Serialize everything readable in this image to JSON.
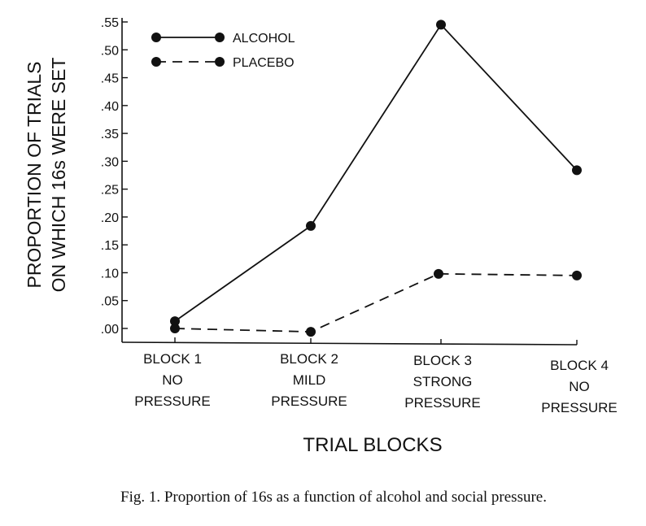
{
  "chart_data": {
    "type": "line",
    "title": "",
    "xlabel": "TRIAL BLOCKS",
    "ylabel": [
      "PROPORTION OF TRIALS",
      "ON WHICH 16s WERE SET"
    ],
    "categories": [
      {
        "lines": [
          "BLOCK   1",
          "NO",
          "PRESSURE"
        ]
      },
      {
        "lines": [
          "BLOCK   2",
          "MILD",
          "PRESSURE"
        ]
      },
      {
        "lines": [
          "BLOCK   3",
          "STRONG",
          "PRESSURE"
        ]
      },
      {
        "lines": [
          "BLOCK   4",
          "NO",
          "PRESSURE"
        ]
      }
    ],
    "yticks": [
      ".00",
      ".05",
      ".10",
      ".15",
      ".20",
      ".25",
      ".30",
      ".35",
      ".40",
      ".45",
      ".50",
      ".55"
    ],
    "ylim": [
      0,
      0.55
    ],
    "grid": false,
    "legend_position": "top-left",
    "series": [
      {
        "name": "ALCOHOL",
        "style": "solid",
        "values": [
          0.013,
          0.184,
          0.545,
          0.284
        ]
      },
      {
        "name": "PLACEBO",
        "style": "dashed",
        "values": [
          0.0,
          -0.006,
          0.098,
          0.095
        ]
      }
    ],
    "caption": "Fig. 1.   Proportion of 16s as a function of alcohol and social pressure."
  }
}
